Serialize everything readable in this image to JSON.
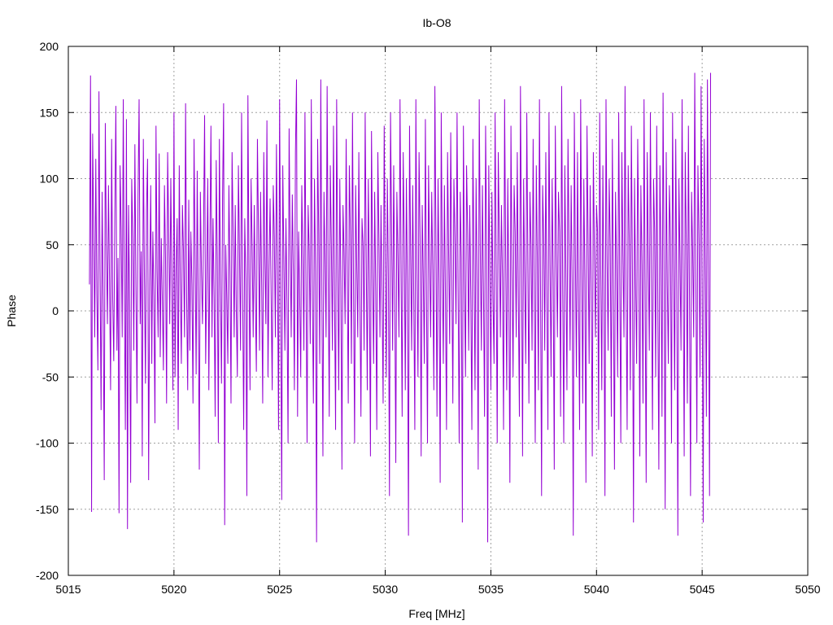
{
  "chart_data": {
    "type": "line",
    "title": "Ib-O8",
    "xlabel": "Freq [MHz]",
    "ylabel": "Phase",
    "xlim": [
      5015,
      5050
    ],
    "ylim": [
      -200,
      200
    ],
    "x_ticks": [
      5015,
      5020,
      5025,
      5030,
      5035,
      5040,
      5045,
      5050
    ],
    "y_ticks": [
      -200,
      -150,
      -100,
      -50,
      0,
      50,
      100,
      150,
      200
    ],
    "grid": true,
    "legend": "none",
    "line_color": "#9400d3",
    "series": [
      {
        "x_start": 5016.0,
        "x_step": 0.05,
        "values": [
          20,
          178,
          -152,
          134,
          60,
          -20,
          115,
          12,
          -45,
          166,
          30,
          -75,
          90,
          5,
          -128,
          142,
          48,
          -10,
          95,
          22,
          -60,
          130,
          8,
          -38,
          72,
          155,
          -30,
          40,
          -153,
          110,
          62,
          -20,
          160,
          15,
          -90,
          145,
          -165,
          80,
          4,
          -130,
          100,
          55,
          -30,
          126,
          18,
          -70,
          88,
          160,
          -10,
          45,
          -110,
          130,
          28,
          -55,
          76,
          115,
          -128,
          20,
          95,
          -40,
          60,
          10,
          -85,
          140,
          30,
          -20,
          119,
          -35,
          55,
          8,
          -45,
          95,
          40,
          -70,
          120,
          60,
          -10,
          100,
          18,
          -60,
          150,
          -50,
          30,
          70,
          -90,
          110,
          22,
          -40,
          80,
          45,
          -20,
          157,
          10,
          -60,
          84,
          -30,
          60,
          20,
          -70,
          130,
          40,
          -48,
          106,
          5,
          -120,
          90,
          30,
          -10,
          60,
          148,
          -40,
          24,
          100,
          -60,
          50,
          140,
          -20,
          70,
          10,
          -80,
          114,
          40,
          -100,
          130,
          20,
          -55,
          86,
          157,
          -162,
          50,
          10,
          -40,
          95,
          30,
          -70,
          120,
          60,
          -20,
          80,
          0,
          -50,
          110,
          45,
          -30,
          150,
          15,
          -90,
          70,
          24,
          -140,
          163,
          30,
          -60,
          100,
          48,
          -20,
          80,
          10,
          -46,
          130,
          60,
          -30,
          90,
          20,
          -70,
          120,
          40,
          -10,
          144,
          -50,
          30,
          85,
          10,
          -60,
          95,
          56,
          -20,
          126,
          30,
          -90,
          160,
          15,
          -143,
          110,
          40,
          -30,
          70,
          5,
          -100,
          138,
          50,
          -20,
          88,
          30,
          -60,
          120,
          175,
          -80,
          60,
          10,
          -50,
          95,
          40,
          -30,
          150,
          20,
          -100,
          80,
          45,
          -25,
          160,
          10,
          -70,
          100,
          30,
          -175,
          130,
          60,
          -40,
          175,
          15,
          -110,
          90,
          40,
          -20,
          170,
          25,
          -80,
          110,
          50,
          -30,
          140,
          10,
          -90,
          160,
          35,
          -60,
          100,
          20,
          -120,
          80,
          45,
          -10,
          130,
          30,
          -70,
          110,
          60,
          -40,
          150,
          15,
          -100,
          95,
          35,
          -20,
          120,
          10,
          -80,
          70,
          50,
          -30,
          150,
          40,
          -60,
          100,
          20,
          -110,
          136,
          30,
          -40,
          90,
          15,
          -90,
          120,
          55,
          -20,
          80,
          10,
          -70,
          140,
          35,
          -50,
          100,
          25,
          -140,
          150,
          60,
          -30,
          110,
          15,
          -115,
          90,
          40,
          -20,
          160,
          30,
          -80,
          120,
          50,
          -60,
          100,
          20,
          -170,
          140,
          45,
          -30,
          95,
          10,
          -90,
          160,
          30,
          -50,
          120,
          55,
          -110,
          80,
          25,
          -40,
          145,
          15,
          -100,
          110,
          40,
          -20,
          90,
          30,
          -60,
          170,
          50,
          -80,
          100,
          20,
          -130,
          150,
          35,
          -40,
          95,
          10,
          -90,
          120,
          45,
          -25,
          135,
          30,
          -70,
          100,
          55,
          -10,
          150,
          15,
          -100,
          90,
          40,
          -160,
          140,
          25,
          -50,
          110,
          60,
          -30,
          80,
          10,
          -90,
          130,
          35,
          -60,
          100,
          20,
          -120,
          160,
          45,
          -30,
          95,
          15,
          -80,
          140,
          50,
          -175,
          110,
          30,
          -60,
          90,
          10,
          -40,
          150,
          35,
          -100,
          120,
          55,
          -20,
          80,
          25,
          -90,
          160,
          40,
          -60,
          100,
          15,
          -130,
          140,
          30,
          -50,
          95,
          60,
          -20,
          120,
          10,
          -80,
          170,
          45,
          -110,
          100,
          25,
          -40,
          150,
          35,
          -70,
          90,
          50,
          -30,
          130,
          15,
          -100,
          110,
          40,
          -60,
          160,
          20,
          -140,
          95,
          55,
          -30,
          120,
          10,
          -90,
          150,
          35,
          -50,
          100,
          25,
          -120,
          140,
          45,
          -20,
          90,
          60,
          -80,
          170,
          15,
          -100,
          110,
          30,
          -60,
          130,
          50,
          -30,
          95,
          20,
          -170,
          150,
          40,
          -50,
          120,
          10,
          -90,
          160,
          35,
          -70,
          100,
          25,
          -130,
          140,
          55,
          -40,
          95,
          15,
          -110,
          120,
          45,
          -20,
          80,
          60,
          -90,
          150,
          30,
          -60,
          110,
          20,
          -140,
          160,
          40,
          -30,
          100,
          50,
          -80,
          130,
          15,
          -120,
          90,
          35,
          -50,
          150,
          25,
          -100,
          120,
          45,
          -20,
          170,
          10,
          -90,
          110,
          55,
          -60,
          140,
          30,
          -160,
          100,
          20,
          -40,
          130,
          50,
          -110,
          95,
          35,
          -70,
          160,
          15,
          -130,
          120,
          40,
          -30,
          150,
          25,
          -90,
          100,
          60,
          -50,
          140,
          10,
          -120,
          110,
          45,
          -80,
          165,
          30,
          -150,
          120,
          20,
          -40,
          95,
          55,
          -100,
          150,
          35,
          -60,
          130,
          15,
          -170,
          100,
          40,
          -30,
          160,
          25,
          -110,
          120,
          50,
          -70,
          140,
          10,
          -140,
          90,
          45,
          -20,
          180,
          30,
          -100,
          110,
          55,
          -50,
          170,
          20,
          -160,
          130,
          40,
          -80,
          175,
          35,
          -140,
          180
        ]
      }
    ]
  }
}
